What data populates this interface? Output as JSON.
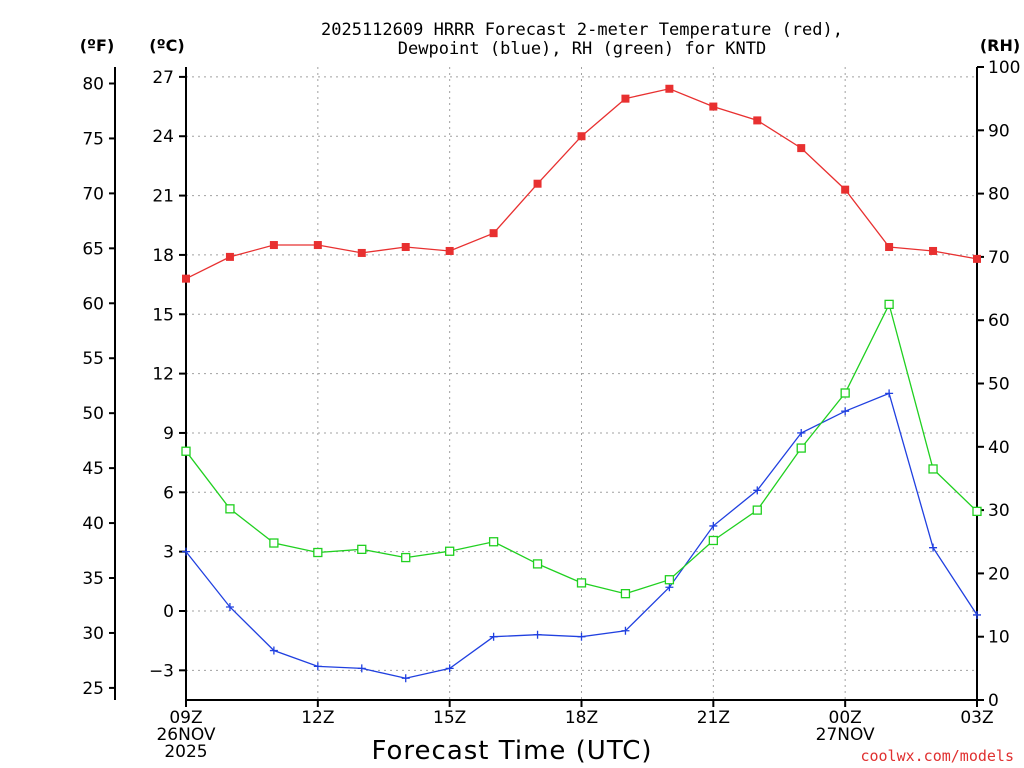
{
  "chart_data": {
    "type": "line",
    "title_line1": "2025112609 HRRR Forecast 2-meter Temperature (red),",
    "title_line2": "Dewpoint (blue), RH (green) for KNTD",
    "xlabel": "Forecast Time (UTC)",
    "credit": "coolwx.com/models",
    "unit_f": "(ºF)",
    "unit_c": "(ºC)",
    "unit_rh": "(RH)",
    "hours_from_start": [
      0,
      1,
      2,
      3,
      4,
      5,
      6,
      7,
      8,
      9,
      10,
      11,
      12,
      13,
      14,
      15,
      16,
      17,
      18
    ],
    "x_ticks": [
      {
        "hour": 0,
        "line1": "09Z",
        "line2": "26NOV",
        "line3": "2025"
      },
      {
        "hour": 3,
        "line1": "12Z",
        "line2": "",
        "line3": ""
      },
      {
        "hour": 6,
        "line1": "15Z",
        "line2": "",
        "line3": ""
      },
      {
        "hour": 9,
        "line1": "18Z",
        "line2": "",
        "line3": ""
      },
      {
        "hour": 12,
        "line1": "21Z",
        "line2": "",
        "line3": ""
      },
      {
        "hour": 15,
        "line1": "00Z",
        "line2": "27NOV",
        "line3": ""
      },
      {
        "hour": 18,
        "line1": "03Z",
        "line2": "",
        "line3": ""
      }
    ],
    "c_axis": {
      "min": -4.5,
      "max": 27.5,
      "ticks": [
        27,
        24,
        21,
        18,
        15,
        12,
        9,
        6,
        3,
        0,
        -3
      ],
      "tick_labels": [
        "27",
        "24",
        "21",
        "18",
        "15",
        "12",
        "9",
        "6",
        "3",
        "0",
        "−3"
      ]
    },
    "f_axis": {
      "ticks": [
        80,
        75,
        70,
        65,
        60,
        55,
        50,
        45,
        40,
        35,
        30,
        25
      ],
      "tick_labels": [
        "80",
        "75",
        "70",
        "65",
        "60",
        "55",
        "50",
        "45",
        "40",
        "35",
        "30",
        "25"
      ]
    },
    "rh_axis": {
      "min": 0,
      "max": 100,
      "ticks": [
        100,
        90,
        80,
        70,
        60,
        50,
        40,
        30,
        20,
        10,
        0
      ],
      "tick_labels": [
        "100",
        "90",
        "80",
        "70",
        "60",
        "50",
        "40",
        "30",
        "20",
        "10",
        "0"
      ]
    },
    "series": [
      {
        "name": "Temperature",
        "axis": "c",
        "color": "#e83030",
        "marker": "filled-square",
        "values": [
          16.8,
          17.9,
          18.5,
          18.5,
          18.1,
          18.4,
          18.2,
          19.1,
          21.6,
          24.0,
          25.9,
          26.4,
          25.5,
          24.8,
          23.4,
          21.3,
          18.4,
          18.2,
          17.8
        ]
      },
      {
        "name": "Dewpoint",
        "axis": "c",
        "color": "#2040e0",
        "marker": "plus",
        "values": [
          3.0,
          0.2,
          -2.0,
          -2.8,
          -2.9,
          -3.4,
          -2.9,
          -1.3,
          -1.2,
          -1.3,
          -1.0,
          1.2,
          4.3,
          6.1,
          9.0,
          10.1,
          11.0,
          3.2,
          -0.2
        ]
      },
      {
        "name": "RH",
        "axis": "rh",
        "color": "#20d020",
        "marker": "open-square",
        "values": [
          39.3,
          30.2,
          24.8,
          23.3,
          23.8,
          22.5,
          23.5,
          25.0,
          21.5,
          18.5,
          16.8,
          19.0,
          25.2,
          30.0,
          39.8,
          48.5,
          62.5,
          36.5,
          29.8
        ]
      }
    ]
  }
}
